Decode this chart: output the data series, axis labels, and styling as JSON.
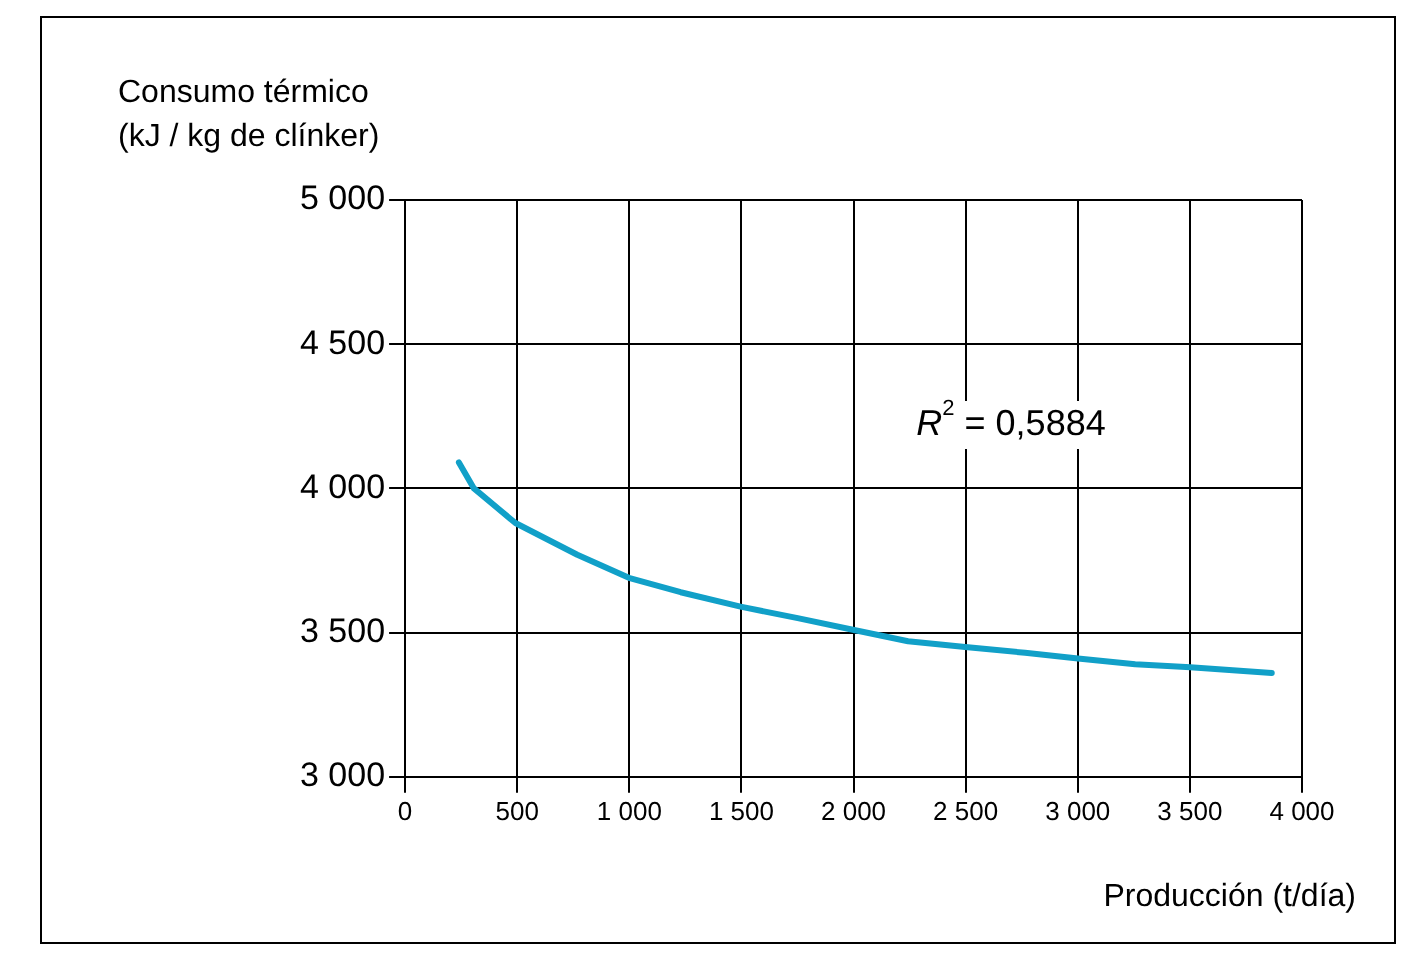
{
  "chart_data": {
    "type": "line",
    "ylabel": "Consumo térmico\n(kJ / kg de clínker)",
    "xlabel": "Producción (t/día)",
    "annotations": [
      "R$^{2}$ = 0,5884"
    ],
    "x": [
      240,
      307,
      492,
      768,
      998,
      1229,
      1496,
      1751,
      1997,
      2243,
      2498,
      2765,
      3001,
      3256,
      3502,
      3865
    ],
    "series": [
      {
        "color": "#11a0c8",
        "values": [
          4090,
          4000,
          3880,
          3770,
          3690,
          3640,
          3590,
          3550,
          3510,
          3470,
          3450,
          3430,
          3410,
          3390,
          3380,
          3360
        ]
      }
    ],
    "xlim": [
      0,
      4000
    ],
    "xticks": [
      0,
      500,
      {
        "value": 1000,
        "label": "1 000"
      },
      {
        "value": 1500,
        "label": "1 500"
      },
      {
        "value": 2000,
        "label": "2 000"
      },
      {
        "value": 2500,
        "label": "2 500"
      },
      {
        "value": 3000,
        "label": "3 000"
      },
      {
        "value": 3500,
        "label": "3 500"
      },
      {
        "value": 4000,
        "label": "4 000"
      }
    ],
    "ylim": [
      3000,
      5000
    ],
    "yticks": [
      {
        "value": 3000,
        "label": "3 000"
      },
      {
        "value": 3500,
        "label": "3 500"
      },
      {
        "value": 4000,
        "label": "4 000"
      },
      {
        "value": 4500,
        "label": "4 500"
      },
      {
        "value": 5000,
        "label": "5 000"
      }
    ],
    "grid": true,
    "legend": false,
    "marker": "none",
    "line_style": "solid"
  }
}
